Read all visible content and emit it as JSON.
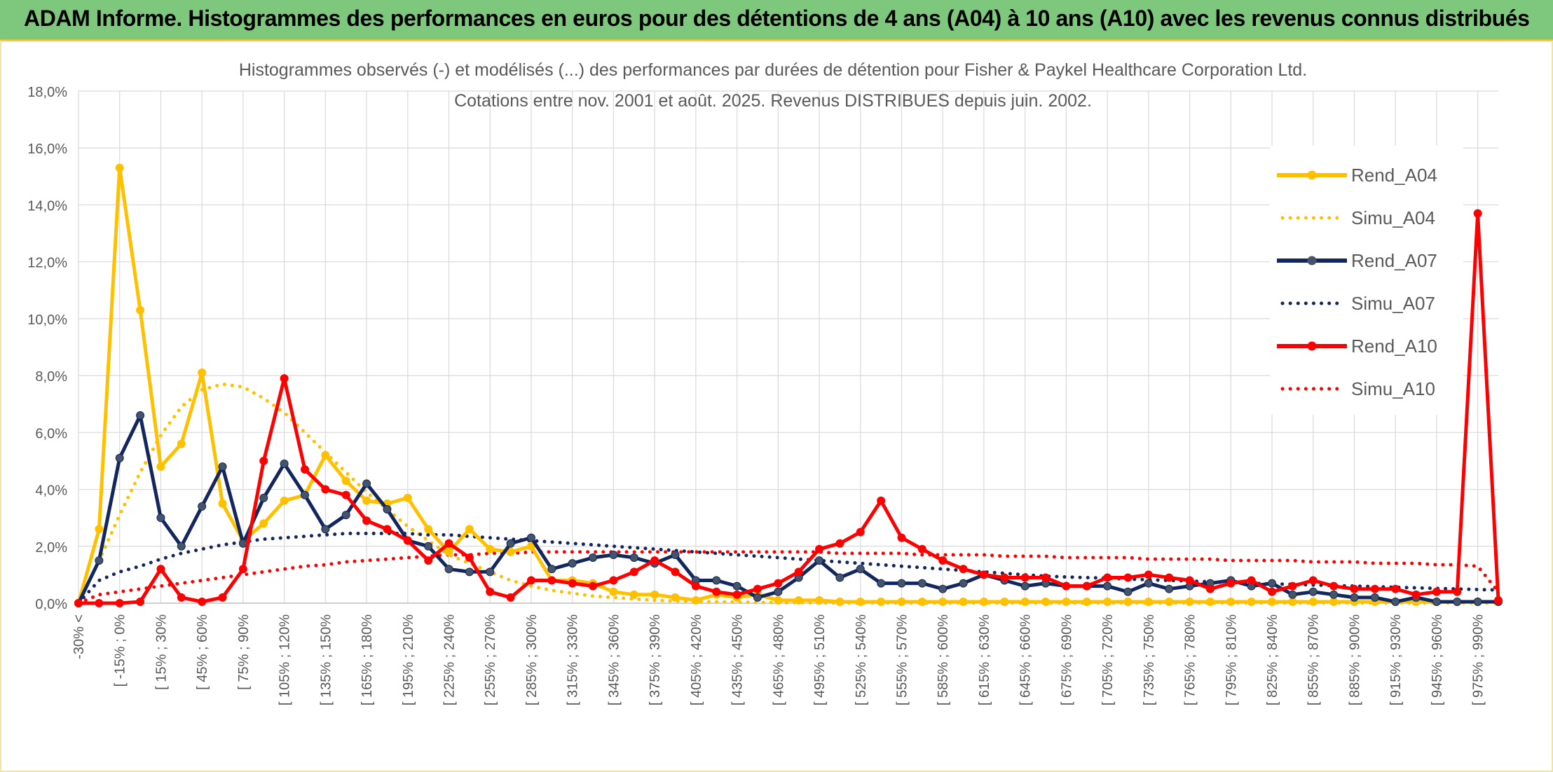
{
  "page": {
    "title": "ADAM Informe. Histogrammes des performances en euros pour des détentions de 4 ans (A04) à 10 ans (A10) avec les revenus connus distribués"
  },
  "chart_data": {
    "type": "line",
    "title": "Histogrammes observés (-) et modélisés (...) des performances par durées de détention pour Fisher & Paykel Healthcare Corporation Ltd.",
    "subtitle": "Cotations entre nov. 2001 et août. 2025. Revenus DISTRIBUES depuis juin. 2002.",
    "xlabel": "",
    "ylabel": "",
    "ylim": [
      0,
      18
    ],
    "y_ticks": [
      "0,0%",
      "2,0%",
      "4,0%",
      "6,0%",
      "8,0%",
      "10,0%",
      "12,0%",
      "14,0%",
      "16,0%",
      "18,0%"
    ],
    "x_tick_labels": [
      "-30% <",
      "[ -15% ; 0%",
      "[ 15% ; 30%",
      "[ 45% ; 60%",
      "[ 75% ; 90%",
      "[ 105% ; 120%",
      "[ 135% ; 150%",
      "[ 165% ; 180%",
      "[ 195% ; 210%",
      "[ 225% ; 240%",
      "[ 255% ; 270%",
      "[ 285% ; 300%",
      "[ 315% ; 330%",
      "[ 345% ; 360%",
      "[ 375% ; 390%",
      "[ 405% ; 420%",
      "[ 435% ; 450%",
      "[ 465% ; 480%",
      "[ 495% ; 510%",
      "[ 525% ; 540%",
      "[ 555% ; 570%",
      "[ 585% ; 600%",
      "[ 615% ; 630%",
      "[ 645% ; 660%",
      "[ 675% ; 690%",
      "[ 705% ; 720%",
      "[ 735% ; 750%",
      "[ 765% ; 780%",
      "[ 795% ; 810%",
      "[ 825% ; 840%",
      "[ 855% ; 870%",
      "[ 885% ; 900%",
      "[ 915% ; 930%",
      "[ 945% ; 960%",
      "[ 975% ; 990%"
    ],
    "grid": true,
    "legend_position": "top-right",
    "series": [
      {
        "name": "Rend_A04",
        "style": "solid",
        "color": "#ffc000",
        "values": [
          0.0,
          2.6,
          15.3,
          10.3,
          4.8,
          5.6,
          8.1,
          3.5,
          2.2,
          2.8,
          3.6,
          3.8,
          5.2,
          4.3,
          3.6,
          3.5,
          3.7,
          2.6,
          1.8,
          2.6,
          1.9,
          1.8,
          2.0,
          0.8,
          0.8,
          0.7,
          0.4,
          0.3,
          0.3,
          0.2,
          0.1,
          0.3,
          0.2,
          0.3,
          0.1,
          0.1,
          0.1,
          0.05,
          0.05,
          0.05,
          0.05,
          0.05,
          0.05,
          0.05,
          0.05,
          0.05,
          0.05,
          0.05,
          0.05,
          0.05,
          0.05,
          0.05,
          0.05,
          0.05,
          0.05,
          0.05,
          0.05,
          0.05,
          0.05,
          0.05,
          0.05,
          0.05,
          0.05,
          0.05,
          0.05,
          0.05,
          0.05,
          0.05,
          0.05,
          0.05
        ]
      },
      {
        "name": "Simu_A04",
        "style": "dotted",
        "color": "#ffc000",
        "values": [
          0.0,
          1.5,
          3.1,
          4.6,
          5.9,
          6.9,
          7.5,
          7.7,
          7.6,
          7.2,
          6.7,
          6.0,
          5.3,
          4.6,
          3.9,
          3.3,
          2.7,
          2.2,
          1.7,
          1.4,
          1.1,
          0.8,
          0.6,
          0.45,
          0.35,
          0.25,
          0.2,
          0.15,
          0.1,
          0.08,
          0.06,
          0.05,
          0.04,
          0.03,
          0.02,
          0.02,
          0.01,
          0.01,
          0.01,
          0.01,
          0.01,
          0.01,
          0.01,
          0.01,
          0.01,
          0.01,
          0.01,
          0.01,
          0.01,
          0.01,
          0.01,
          0.01,
          0.01,
          0.01,
          0.01,
          0.01,
          0.01,
          0.01,
          0.01,
          0.01,
          0.01,
          0.01,
          0.01,
          0.01,
          0.01,
          0.01,
          0.01,
          0.01,
          0.01,
          0.01
        ]
      },
      {
        "name": "Rend_A07",
        "style": "solid",
        "color": "#13265e",
        "values": [
          0.0,
          1.5,
          5.1,
          6.6,
          3.0,
          2.0,
          3.4,
          4.8,
          2.1,
          3.7,
          4.9,
          3.8,
          2.6,
          3.1,
          4.2,
          3.3,
          2.2,
          2.0,
          1.2,
          1.1,
          1.1,
          2.1,
          2.3,
          1.2,
          1.4,
          1.6,
          1.7,
          1.6,
          1.4,
          1.7,
          0.8,
          0.8,
          0.6,
          0.2,
          0.4,
          0.9,
          1.5,
          0.9,
          1.2,
          0.7,
          0.7,
          0.7,
          0.5,
          0.7,
          1.0,
          0.8,
          0.6,
          0.7,
          0.6,
          0.6,
          0.6,
          0.4,
          0.7,
          0.5,
          0.6,
          0.7,
          0.8,
          0.6,
          0.7,
          0.3,
          0.4,
          0.3,
          0.2,
          0.2,
          0.05,
          0.2,
          0.05,
          0.05,
          0.05,
          0.05
        ]
      },
      {
        "name": "Simu_A07",
        "style": "dotted",
        "color": "#13265e",
        "values": [
          0.0,
          0.8,
          1.1,
          1.3,
          1.55,
          1.75,
          1.9,
          2.05,
          2.15,
          2.25,
          2.3,
          2.35,
          2.4,
          2.45,
          2.45,
          2.45,
          2.45,
          2.4,
          2.4,
          2.35,
          2.3,
          2.25,
          2.2,
          2.15,
          2.1,
          2.05,
          2.0,
          1.95,
          1.9,
          1.85,
          1.8,
          1.75,
          1.7,
          1.65,
          1.6,
          1.55,
          1.5,
          1.45,
          1.4,
          1.35,
          1.3,
          1.25,
          1.2,
          1.15,
          1.1,
          1.05,
          1.0,
          0.95,
          0.92,
          0.9,
          0.88,
          0.85,
          0.82,
          0.8,
          0.78,
          0.75,
          0.72,
          0.7,
          0.68,
          0.66,
          0.64,
          0.62,
          0.6,
          0.58,
          0.56,
          0.54,
          0.52,
          0.5,
          0.48,
          0.46
        ]
      },
      {
        "name": "Rend_A10",
        "style": "solid",
        "color": "#ff0000",
        "values": [
          0.0,
          0.0,
          0.0,
          0.05,
          1.2,
          0.2,
          0.05,
          0.2,
          1.2,
          5.0,
          7.9,
          4.7,
          4.0,
          3.8,
          2.9,
          2.6,
          2.2,
          1.5,
          2.1,
          1.6,
          0.4,
          0.2,
          0.8,
          0.8,
          0.7,
          0.6,
          0.8,
          1.1,
          1.5,
          1.1,
          0.6,
          0.4,
          0.3,
          0.5,
          0.7,
          1.1,
          1.9,
          2.1,
          2.5,
          3.6,
          2.3,
          1.9,
          1.5,
          1.2,
          1.0,
          0.9,
          0.9,
          0.9,
          0.6,
          0.6,
          0.9,
          0.9,
          1.0,
          0.9,
          0.8,
          0.5,
          0.7,
          0.8,
          0.4,
          0.6,
          0.8,
          0.6,
          0.5,
          0.5,
          0.5,
          0.3,
          0.4,
          0.4,
          13.7,
          0.1
        ]
      },
      {
        "name": "Simu_A10",
        "style": "dotted",
        "color": "#ff0000",
        "values": [
          0.0,
          0.3,
          0.4,
          0.5,
          0.6,
          0.7,
          0.8,
          0.9,
          1.0,
          1.1,
          1.2,
          1.3,
          1.35,
          1.45,
          1.5,
          1.55,
          1.6,
          1.65,
          1.7,
          1.7,
          1.75,
          1.75,
          1.8,
          1.8,
          1.8,
          1.8,
          1.8,
          1.8,
          1.8,
          1.8,
          1.8,
          1.8,
          1.8,
          1.8,
          1.8,
          1.8,
          1.8,
          1.75,
          1.75,
          1.75,
          1.75,
          1.7,
          1.7,
          1.7,
          1.7,
          1.65,
          1.65,
          1.65,
          1.6,
          1.6,
          1.6,
          1.6,
          1.55,
          1.55,
          1.55,
          1.55,
          1.5,
          1.5,
          1.5,
          1.5,
          1.45,
          1.45,
          1.45,
          1.4,
          1.4,
          1.4,
          1.35,
          1.35,
          1.3,
          0.4
        ]
      }
    ]
  }
}
